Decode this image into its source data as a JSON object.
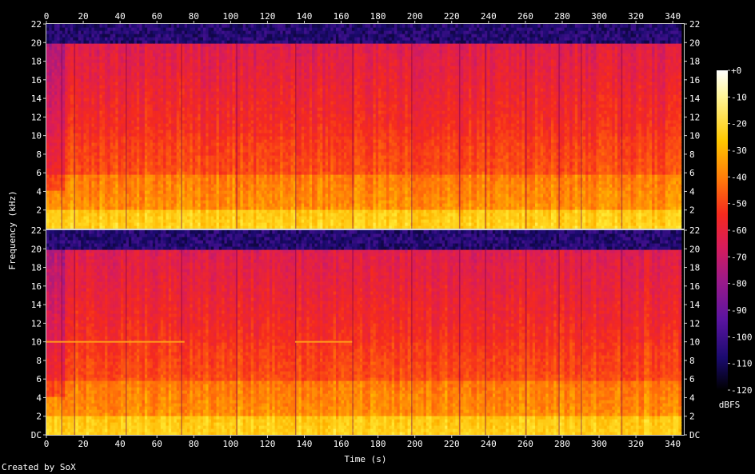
{
  "chart_data": {
    "type": "heatmap",
    "kind": "spectrogram",
    "credit": "Created by SoX",
    "xlabel": "Time (s)",
    "ylabel": "Frequency (kHz)",
    "x_ticks": [
      "0",
      "20",
      "40",
      "60",
      "80",
      "100",
      "120",
      "140",
      "160",
      "180",
      "200",
      "220",
      "240",
      "260",
      "280",
      "300",
      "320",
      "340"
    ],
    "y_ticks_top_channel": [
      "22",
      "20",
      "18",
      "16",
      "14",
      "12",
      "10",
      "8",
      "6",
      "4",
      "2"
    ],
    "y_ticks_bottom_channel": [
      "22",
      "20",
      "18",
      "16",
      "14",
      "12",
      "10",
      "8",
      "6",
      "4",
      "2",
      "DC"
    ],
    "xlim": [
      0,
      346
    ],
    "ylim_khz": [
      0,
      22
    ],
    "channels": 2,
    "colorbar": {
      "unit": "dBFS",
      "ticks": [
        "+0",
        "-10",
        "-20",
        "-30",
        "-40",
        "-50",
        "-60",
        "-70",
        "-80",
        "-90",
        "-100",
        "-110",
        "-120"
      ],
      "range_dbfs": [
        -120,
        0
      ]
    },
    "palette": [
      "#000000",
      "#1a0a6e",
      "#5a14a0",
      "#9a1a8a",
      "#d81c5a",
      "#f52a1e",
      "#ff6a0a",
      "#ffb400",
      "#ffe830",
      "#ffffd8"
    ],
    "series": [
      {
        "lowpass_cutoff_khz": 20,
        "content_start_s": 1,
        "content_end_s": 344,
        "approx_level_dbfs": [
          {
            "band_khz": [
              0,
              2
            ],
            "level": -20
          },
          {
            "band_khz": [
              2,
              6
            ],
            "level": -35
          },
          {
            "band_khz": [
              6,
              10
            ],
            "level": -48
          },
          {
            "band_khz": [
              10,
              20
            ],
            "level": -58
          },
          {
            "band_khz": [
              20,
              22
            ],
            "level": -110
          }
        ]
      },
      {
        "lowpass_cutoff_khz": 20,
        "content_start_s": 1,
        "content_end_s": 344,
        "tone_khz": 10,
        "tone_segments_s": [
          [
            0,
            75
          ],
          [
            135,
            166
          ]
        ],
        "approx_level_dbfs": [
          {
            "band_khz": [
              0,
              2
            ],
            "level": -20
          },
          {
            "band_khz": [
              2,
              6
            ],
            "level": -35
          },
          {
            "band_khz": [
              6,
              10
            ],
            "level": -48
          },
          {
            "band_khz": [
              10,
              20
            ],
            "level": -58
          },
          {
            "band_khz": [
              20,
              22
            ],
            "level": -110
          }
        ]
      }
    ],
    "vertical_events_s": [
      8,
      15,
      43,
      73,
      103,
      135,
      166,
      198,
      224,
      238,
      260,
      278,
      290,
      312
    ],
    "grid": false
  }
}
